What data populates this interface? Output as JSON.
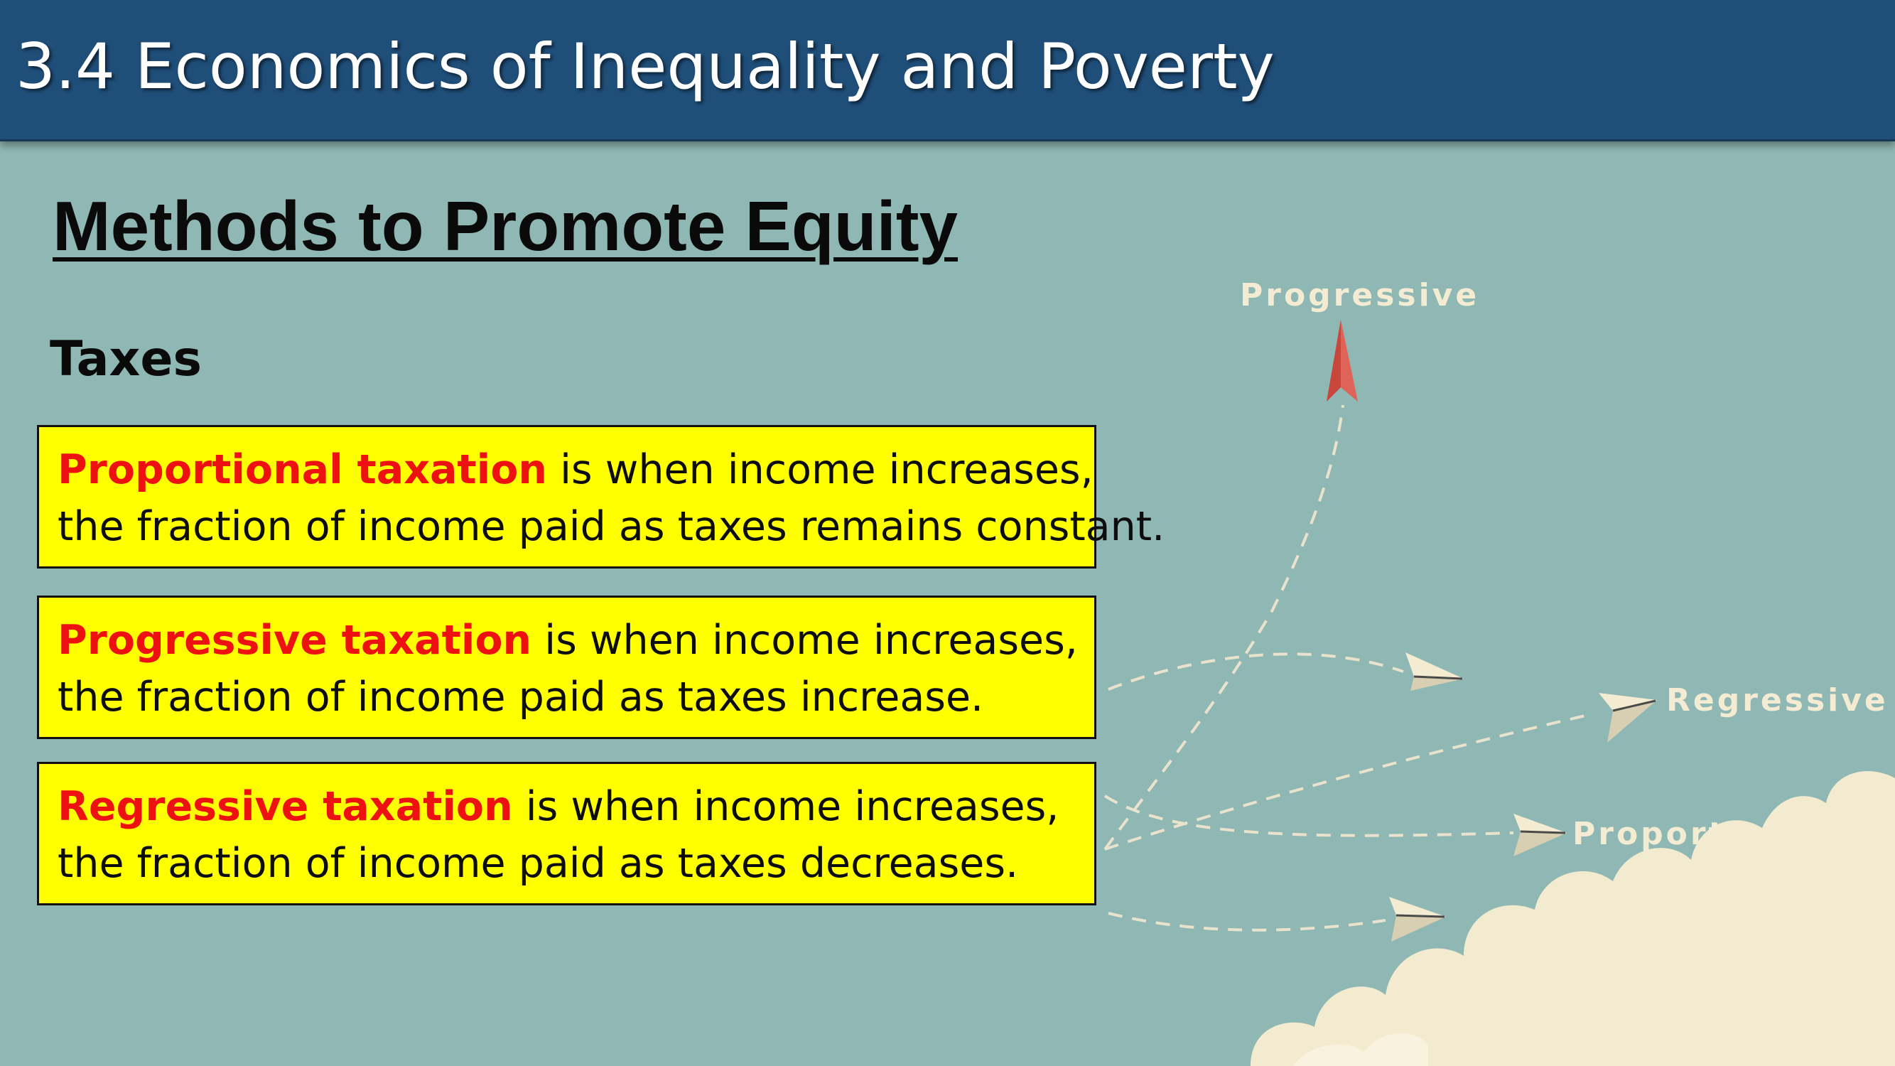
{
  "header": {
    "title": "3.4 Economics of Inequality and Poverty"
  },
  "main": {
    "heading": "Methods to Promote Equity",
    "subheading": "Taxes",
    "definitions": [
      {
        "term": "Proportional taxation",
        "rest": " is when income increases,",
        "line2": "the fraction of income paid as taxes remains constant."
      },
      {
        "term": "Progressive taxation",
        "rest": " is when income increases,",
        "line2": "the fraction of income paid as taxes increase."
      },
      {
        "term": "Regressive taxation",
        "rest": " is when income increases,",
        "line2": "the fraction of income paid as taxes decreases."
      }
    ]
  },
  "graphic": {
    "labels": {
      "progressive": "Progressive",
      "regressive": "Regressive",
      "proportional": "Proportional"
    },
    "icons": [
      "paper-plane-red-icon",
      "paper-plane-icon",
      "cloud-icon"
    ]
  },
  "colors": {
    "header": "#1f4e79",
    "background": "#8fb7b3",
    "box": "#ffff00",
    "term": "#ee1111",
    "cloud": "#f3ebcf",
    "red_plane": "#d9534f"
  }
}
